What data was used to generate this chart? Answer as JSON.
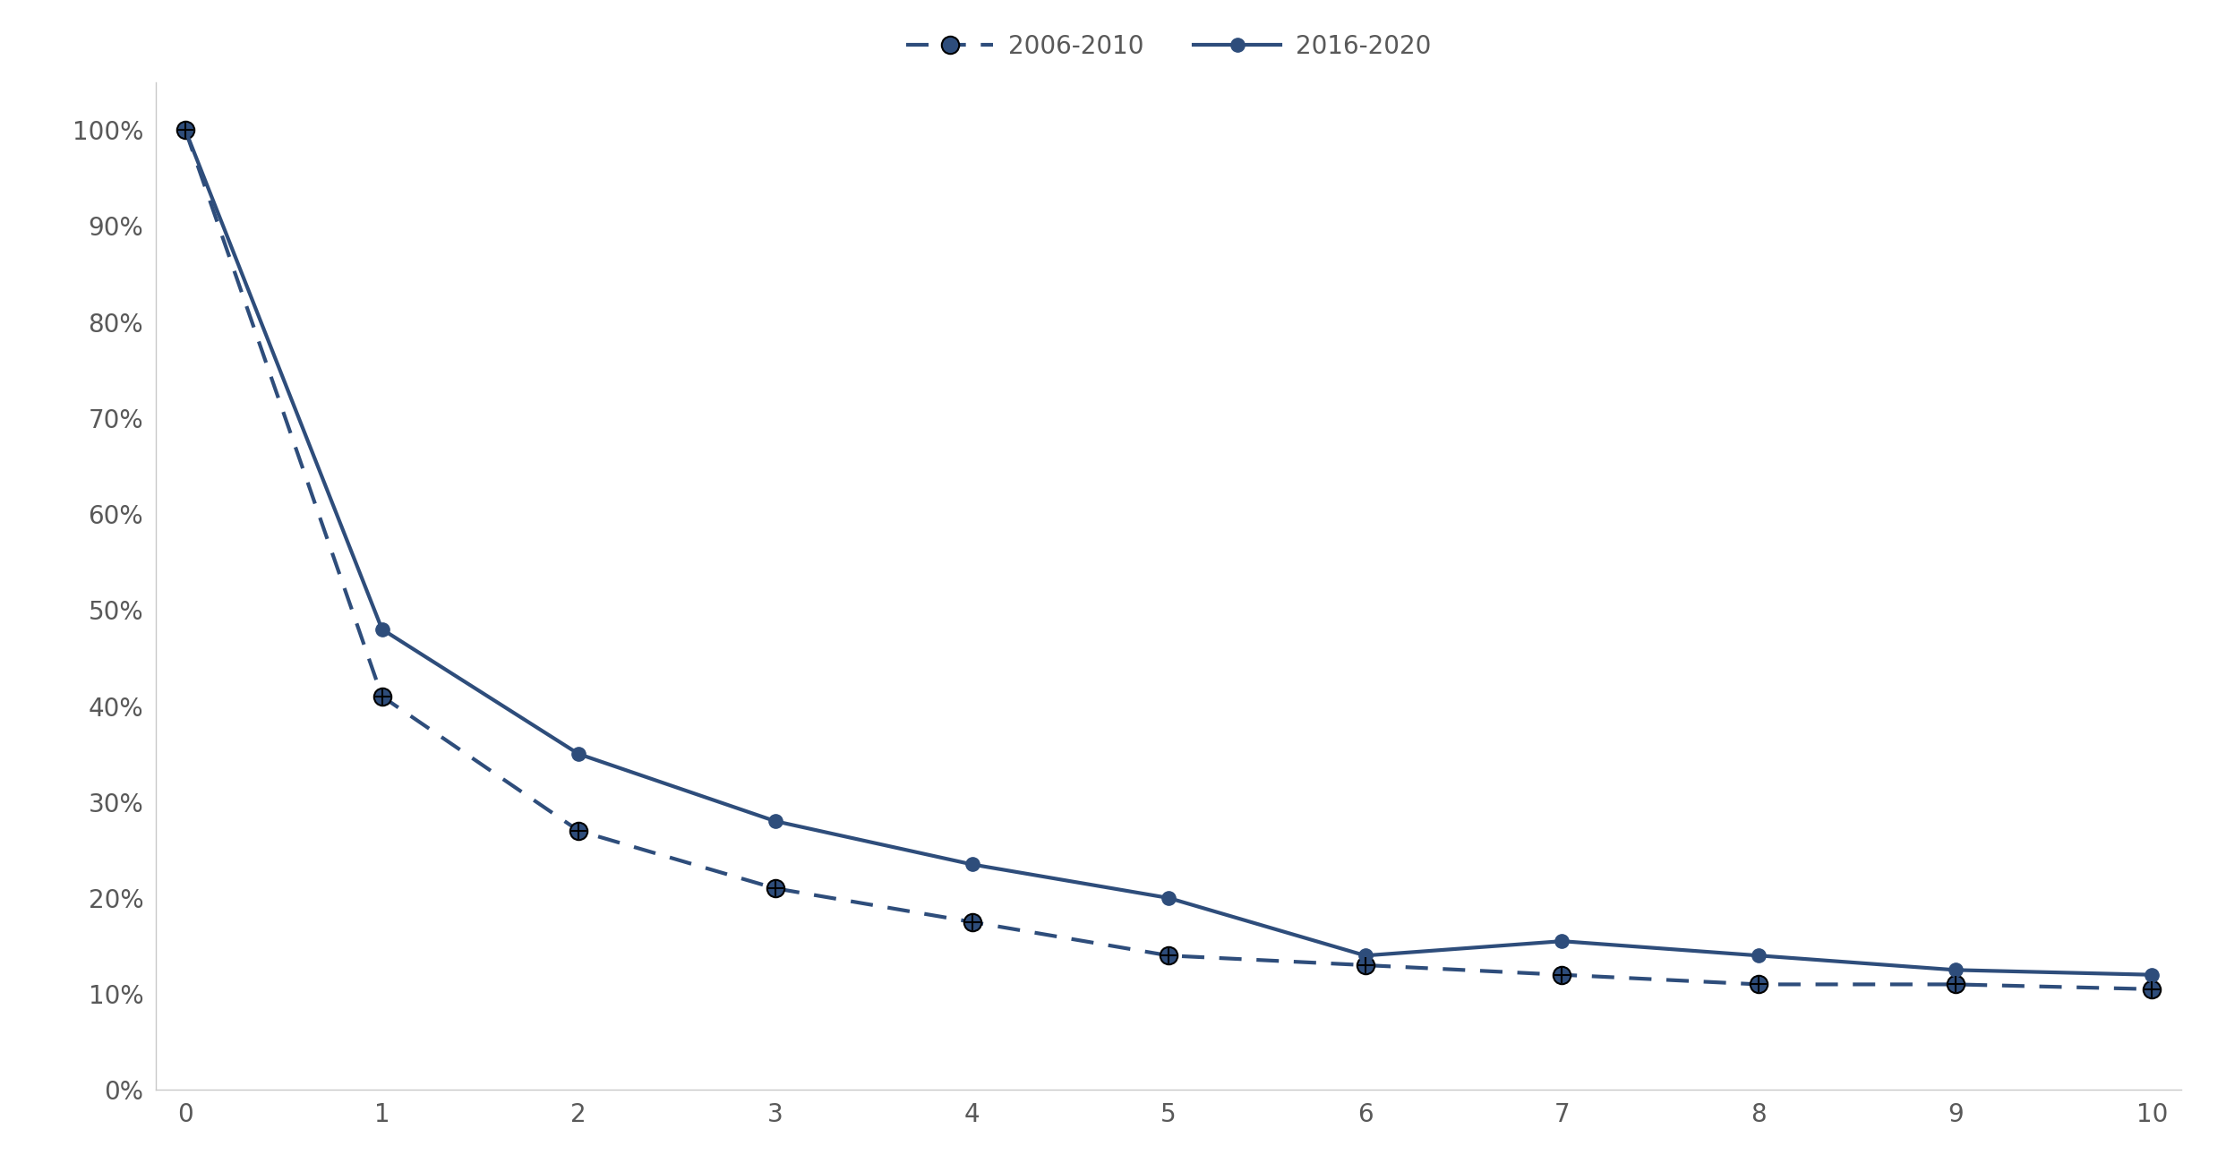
{
  "x": [
    0,
    1,
    2,
    3,
    4,
    5,
    6,
    7,
    8,
    9,
    10
  ],
  "series_2006_2010": [
    1.0,
    0.41,
    0.27,
    0.21,
    0.175,
    0.14,
    0.13,
    0.12,
    0.11,
    0.11,
    0.105
  ],
  "series_2016_2020": [
    1.0,
    0.48,
    0.35,
    0.28,
    0.235,
    0.2,
    0.14,
    0.155,
    0.14,
    0.125,
    0.12
  ],
  "color": "#2E4D7B",
  "label_2006": "2006-2010",
  "label_2016": "2016-2020",
  "ylim": [
    0,
    1.05
  ],
  "xlim": [
    -0.15,
    10.15
  ],
  "yticks": [
    0.0,
    0.1,
    0.2,
    0.3,
    0.4,
    0.5,
    0.6,
    0.7,
    0.8,
    0.9,
    1.0
  ],
  "xticks": [
    0,
    1,
    2,
    3,
    4,
    5,
    6,
    7,
    8,
    9,
    10
  ],
  "background_color": "#ffffff",
  "linewidth": 3.0,
  "markersize_solid": 11,
  "markersize_dashed": 14,
  "legend_fontsize": 20,
  "tick_fontsize": 20,
  "tick_color": "#595959",
  "spine_color": "#c8c8c8"
}
